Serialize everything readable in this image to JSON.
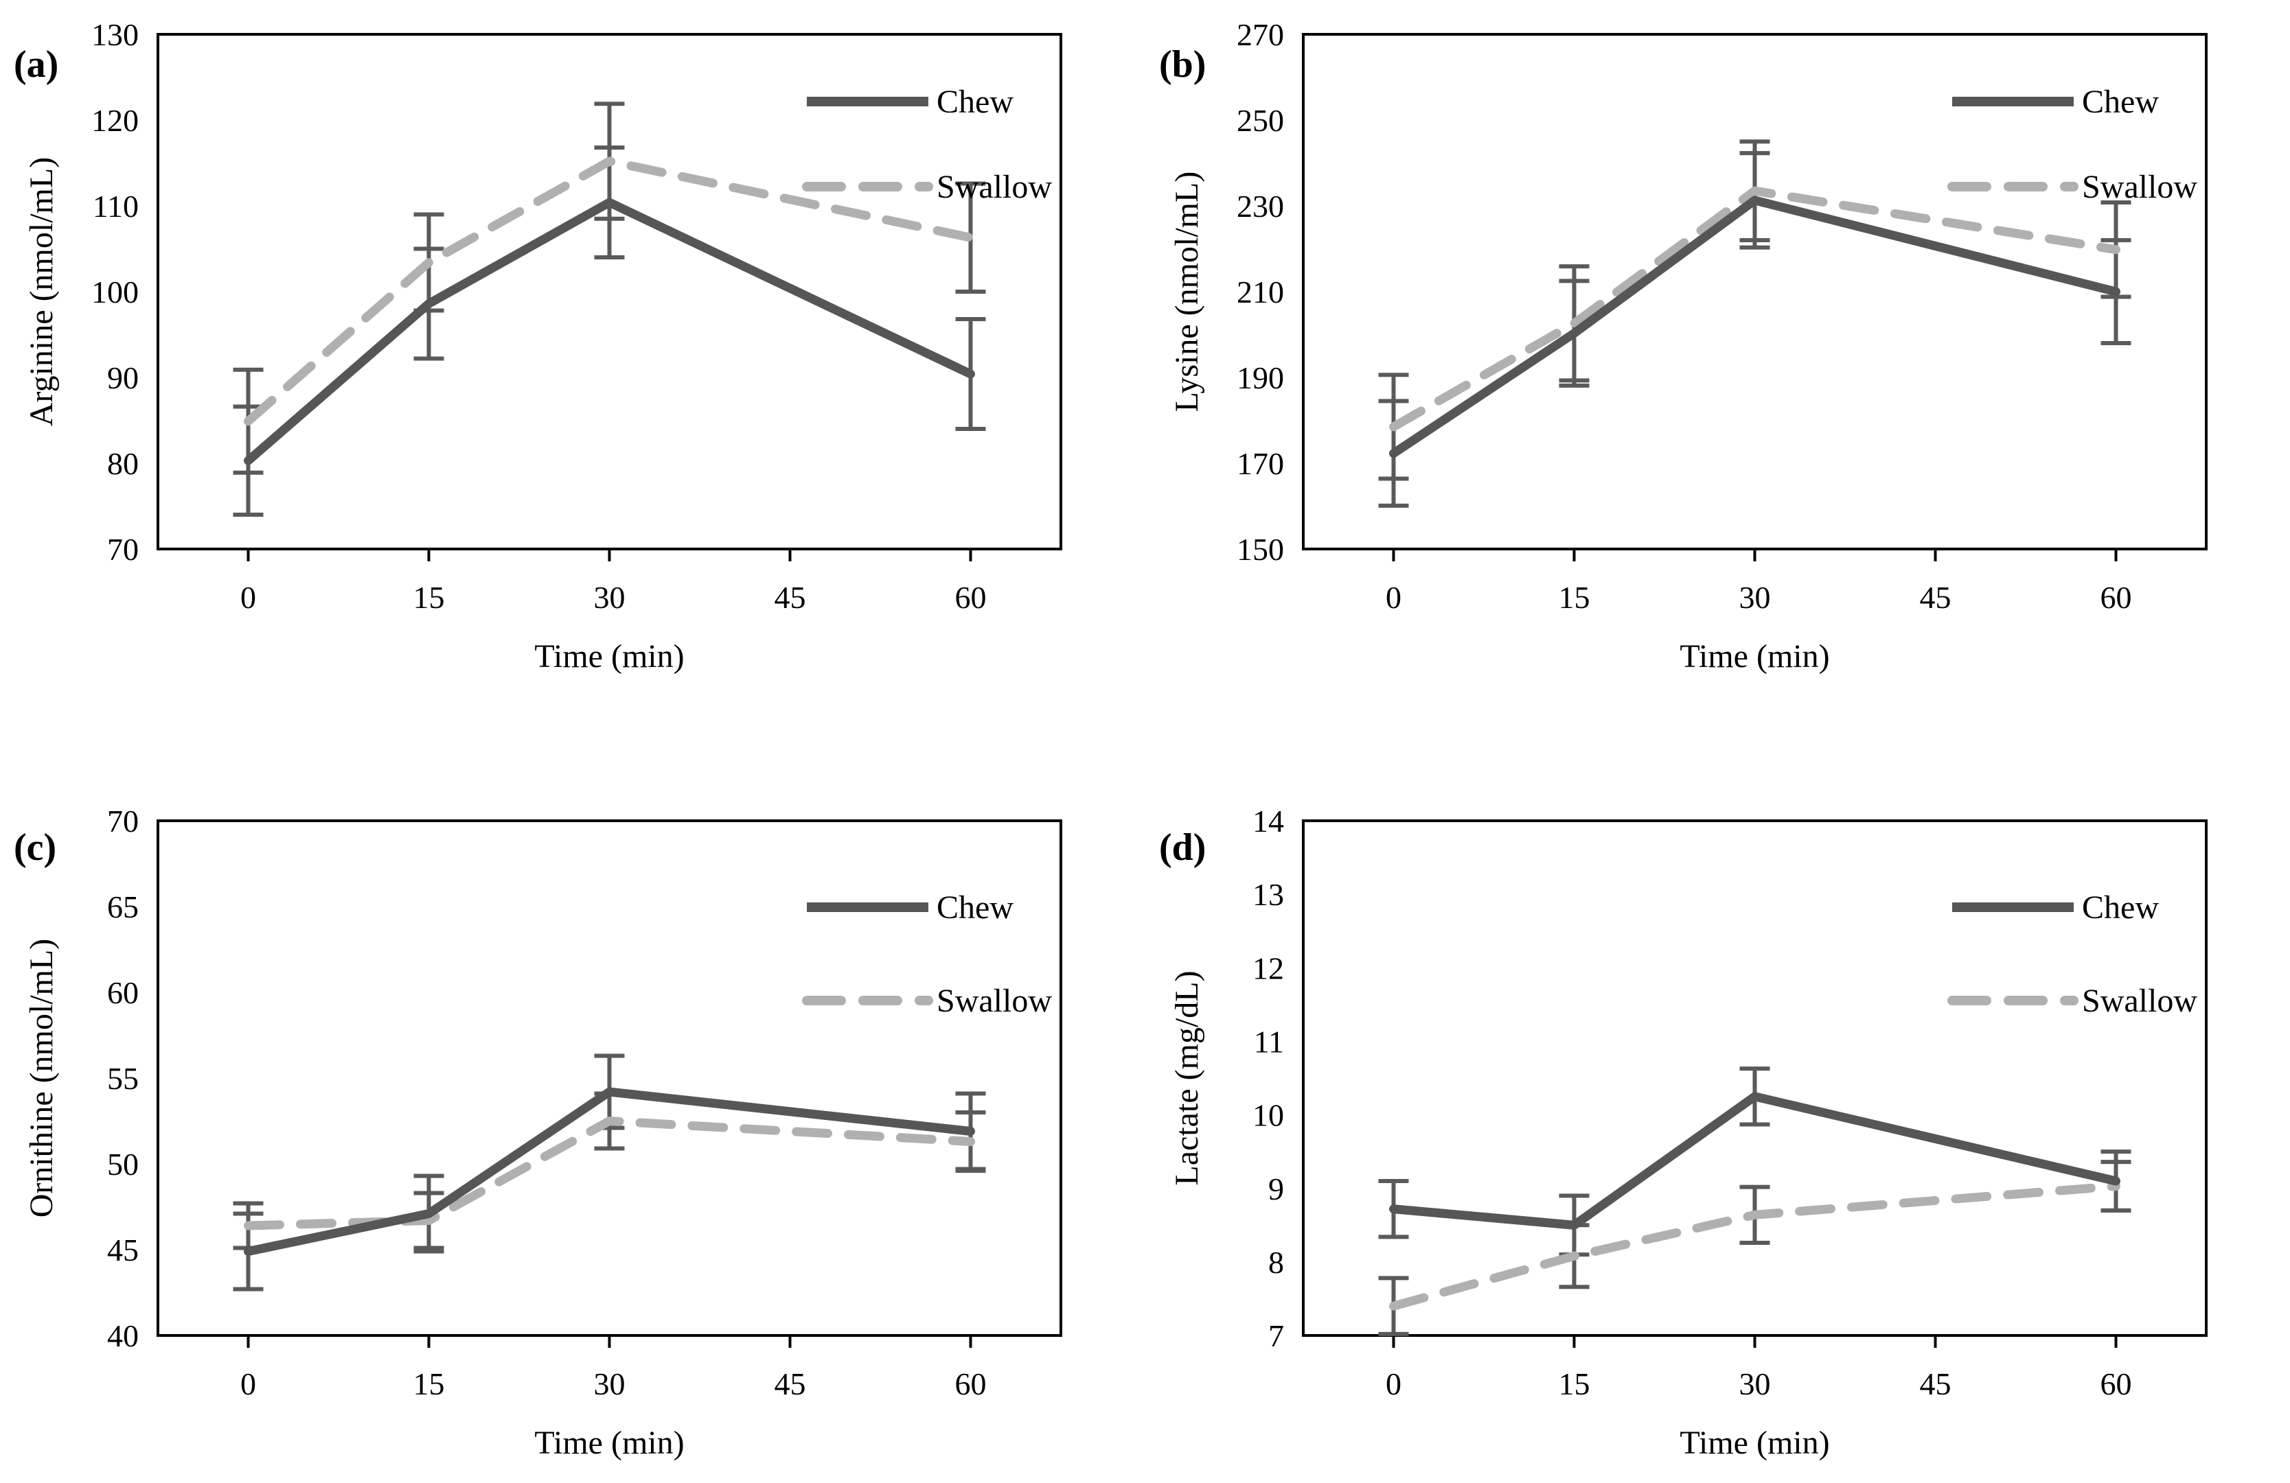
{
  "figure": {
    "description": "Four-panel line chart figure comparing Chew vs Swallow conditions over time",
    "background": "#ffffff"
  },
  "colors": {
    "chew_line": "#565656",
    "swallow_line": "#b0b0b0",
    "error_bar": "#5a5a5a",
    "axis": "#000000",
    "text": "#000000"
  },
  "legend": {
    "entries": [
      "Chew",
      "Swallow"
    ],
    "position": "top-right-inside"
  },
  "x_axis": {
    "label": "Time (min)",
    "tick_labels": [
      "0",
      "15",
      "30",
      "45",
      "60"
    ]
  },
  "chart_data": [
    {
      "id": "a",
      "letter": "(a)",
      "type": "line",
      "title": "",
      "ylabel": "Arginine (nmol/mL)",
      "xlabel": "Time (min)",
      "categories": [
        "0",
        "15",
        "30",
        "45",
        "60"
      ],
      "x": [
        "0",
        "15",
        "30",
        "60"
      ],
      "ylim": [
        70,
        130
      ],
      "yticks": [
        "70",
        "80",
        "90",
        "100",
        "110",
        "120",
        "130"
      ],
      "grid": false,
      "legend_position": "top-right-inside",
      "series": [
        {
          "name": "Chew",
          "style": "solid",
          "values": [
            80.3,
            98.6,
            110.4,
            90.4
          ],
          "errors": [
            6.3,
            6.4,
            6.4,
            6.4
          ]
        },
        {
          "name": "Swallow",
          "style": "dashed",
          "values": [
            84.9,
            103.4,
            115.2,
            106.3
          ],
          "errors": [
            6.0,
            5.6,
            6.7,
            6.3
          ]
        }
      ]
    },
    {
      "id": "b",
      "letter": "(b)",
      "type": "line",
      "title": "",
      "ylabel": "Lysine (nmol/mL)",
      "xlabel": "Time (min)",
      "categories": [
        "0",
        "15",
        "30",
        "45",
        "60"
      ],
      "x": [
        "0",
        "15",
        "30",
        "60"
      ],
      "ylim": [
        150,
        270
      ],
      "yticks": [
        "150",
        "170",
        "190",
        "210",
        "230",
        "250",
        "270"
      ],
      "grid": false,
      "legend_position": "top-right-inside",
      "series": [
        {
          "name": "Chew",
          "style": "solid",
          "values": [
            172.3,
            200.3,
            231.3,
            210.0
          ],
          "errors": [
            12.2,
            12.2,
            11.0,
            12.0
          ]
        },
        {
          "name": "Swallow",
          "style": "dashed",
          "values": [
            178.5,
            202.6,
            233.5,
            219.8
          ],
          "errors": [
            12.1,
            13.3,
            11.5,
            11.0
          ]
        }
      ]
    },
    {
      "id": "c",
      "letter": "(c)",
      "type": "line",
      "title": "",
      "ylabel": "Ornithine (nmol/mL)",
      "xlabel": "Time (min)",
      "categories": [
        "0",
        "15",
        "30",
        "45",
        "60"
      ],
      "x": [
        "0",
        "15",
        "30",
        "60"
      ],
      "ylim": [
        40,
        70
      ],
      "yticks": [
        "40",
        "45",
        "50",
        "55",
        "60",
        "65",
        "70"
      ],
      "grid": false,
      "legend_position": "top-right-inside",
      "series": [
        {
          "name": "Chew",
          "style": "solid",
          "values": [
            44.9,
            47.1,
            54.2,
            51.9
          ],
          "errors": [
            2.2,
            2.2,
            2.1,
            2.2
          ]
        },
        {
          "name": "Swallow",
          "style": "dashed",
          "values": [
            46.4,
            46.7,
            52.5,
            51.3
          ],
          "errors": [
            1.3,
            1.6,
            1.6,
            1.7
          ]
        }
      ]
    },
    {
      "id": "d",
      "letter": "(d)",
      "type": "line",
      "title": "",
      "ylabel": "Lactate (mg/dL)",
      "xlabel": "Time (min)",
      "categories": [
        "0",
        "15",
        "30",
        "45",
        "60"
      ],
      "x": [
        "0",
        "15",
        "30",
        "60"
      ],
      "ylim": [
        7,
        14
      ],
      "yticks": [
        "7",
        "8",
        "9",
        "10",
        "11",
        "12",
        "13",
        "14"
      ],
      "grid": false,
      "legend_position": "top-right-inside",
      "series": [
        {
          "name": "Chew",
          "style": "solid",
          "values": [
            8.72,
            8.5,
            10.25,
            9.1
          ],
          "errors": [
            0.38,
            0.4,
            0.38,
            0.4
          ]
        },
        {
          "name": "Swallow",
          "style": "dashed",
          "values": [
            7.4,
            8.08,
            8.64,
            9.03
          ],
          "errors": [
            0.38,
            0.42,
            0.38,
            0.33
          ]
        }
      ]
    }
  ]
}
